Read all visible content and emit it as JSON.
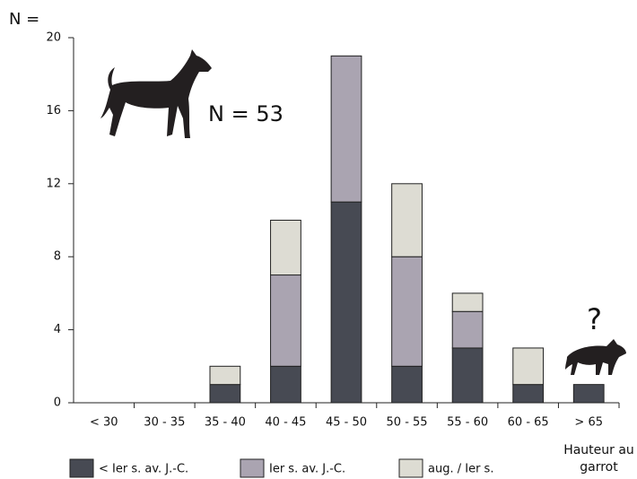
{
  "chart_data": {
    "type": "bar",
    "stacked": true,
    "y_label": "N =",
    "x_label": "Hauteur au garrot",
    "annotations": [
      "N = 53",
      "?"
    ],
    "categories": [
      "< 30",
      "30 - 35",
      "35 - 40",
      "40 - 45",
      "45 - 50",
      "50 - 55",
      "55 - 60",
      "60 - 65",
      "> 65"
    ],
    "series": [
      {
        "name": "< Ier s. av. J.-C.",
        "color": "#474a53",
        "values": [
          0,
          0,
          1,
          2,
          11,
          2,
          3,
          1,
          1
        ]
      },
      {
        "name": "Ier s. av. J.-C.",
        "color": "#aaa4b1",
        "values": [
          0,
          0,
          0,
          5,
          8,
          6,
          2,
          0,
          0
        ]
      },
      {
        "name": "aug. / Ier s.",
        "color": "#dddcd3",
        "values": [
          0,
          0,
          1,
          3,
          0,
          4,
          1,
          2,
          0
        ]
      }
    ],
    "ylim": [
      0,
      20
    ],
    "yticks": [
      0,
      4,
      8,
      12,
      16,
      20
    ]
  }
}
